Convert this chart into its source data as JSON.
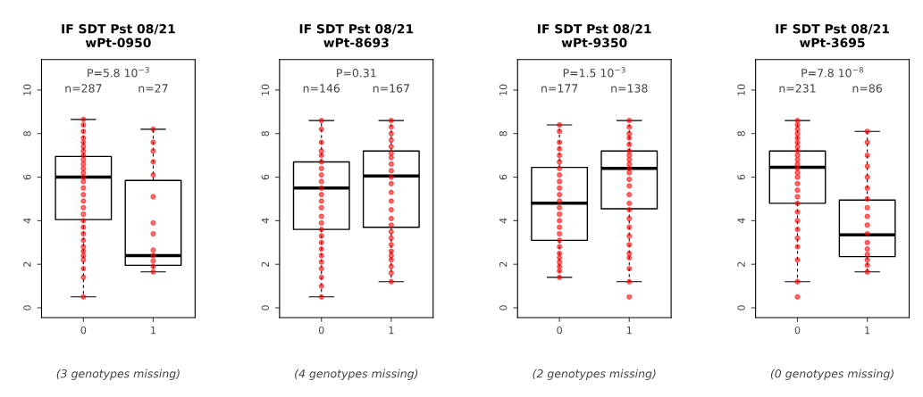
{
  "chart_data": [
    {
      "type": "box",
      "title": "IF SDT Pst 08/21\nwPt-0950",
      "categories": [
        "0",
        "1"
      ],
      "ylim": [
        -0.45,
        11.4
      ],
      "yticks": [
        0,
        2,
        4,
        6,
        8,
        10
      ],
      "grid": false,
      "legend": false,
      "boxes": [
        {
          "low": 0.5,
          "q1": 4.05,
          "median": 6.0,
          "q3": 6.95,
          "high": 8.65
        },
        {
          "low": 1.65,
          "q1": 1.95,
          "median": 2.4,
          "q3": 5.85,
          "high": 8.2
        }
      ],
      "series": [
        {
          "type": "scatter",
          "color": "#ff0000",
          "x": [
            "0",
            "0",
            "0",
            "0",
            "0",
            "0",
            "0",
            "0",
            "0",
            "0",
            "0",
            "0",
            "0",
            "0",
            "0",
            "0",
            "0",
            "0",
            "0",
            "0",
            "0",
            "0",
            "0",
            "0",
            "0",
            "0",
            "0",
            "0",
            "0",
            "0"
          ],
          "values": [
            8.65,
            8.4,
            8.1,
            7.8,
            7.6,
            7.4,
            7.2,
            7.0,
            6.8,
            6.6,
            6.4,
            6.2,
            6.0,
            5.8,
            5.5,
            5.2,
            4.9,
            4.6,
            4.3,
            4.0,
            3.7,
            3.4,
            3.1,
            2.8,
            2.6,
            2.4,
            2.2,
            1.8,
            1.4,
            0.5
          ]
        },
        {
          "type": "scatter",
          "color": "#ff0000",
          "x": [
            "1",
            "1",
            "1",
            "1",
            "1",
            "1",
            "1",
            "1",
            "1",
            "1",
            "1",
            "1",
            "1"
          ],
          "values": [
            8.2,
            7.6,
            7.2,
            6.7,
            6.1,
            5.1,
            3.9,
            3.4,
            2.65,
            2.4,
            2.15,
            1.9,
            1.65
          ]
        }
      ],
      "annotations": [
        "P=5.8 10$^{−3}$",
        "(3 genotypes missing)",
        "n=287",
        "n=27"
      ]
    },
    {
      "type": "box",
      "title": "IF SDT Pst 08/21\nwPt-8693",
      "categories": [
        "0",
        "1"
      ],
      "ylim": [
        -0.45,
        11.4
      ],
      "yticks": [
        0,
        2,
        4,
        6,
        8,
        10
      ],
      "grid": false,
      "legend": false,
      "boxes": [
        {
          "low": 0.5,
          "q1": 3.6,
          "median": 5.5,
          "q3": 6.7,
          "high": 8.6
        },
        {
          "low": 1.2,
          "q1": 3.7,
          "median": 6.05,
          "q3": 7.2,
          "high": 8.6
        }
      ],
      "series": [
        {
          "type": "scatter",
          "color": "#ff0000",
          "x": [
            "0",
            "0",
            "0",
            "0",
            "0",
            "0",
            "0",
            "0",
            "0",
            "0",
            "0",
            "0",
            "0",
            "0",
            "0",
            "0",
            "0",
            "0",
            "0",
            "0",
            "0",
            "0",
            "0",
            "0",
            "0"
          ],
          "values": [
            8.6,
            8.2,
            7.6,
            7.2,
            7.0,
            6.7,
            6.4,
            6.1,
            5.8,
            5.5,
            5.2,
            4.9,
            4.6,
            4.2,
            3.9,
            3.6,
            3.3,
            3.0,
            2.7,
            2.4,
            2.1,
            1.8,
            1.4,
            1.0,
            0.5
          ]
        },
        {
          "type": "scatter",
          "color": "#ff0000",
          "x": [
            "1",
            "1",
            "1",
            "1",
            "1",
            "1",
            "1",
            "1",
            "1",
            "1",
            "1",
            "1",
            "1",
            "1",
            "1",
            "1",
            "1",
            "1",
            "1",
            "1",
            "1",
            "1",
            "1",
            "1",
            "1"
          ],
          "values": [
            8.6,
            8.3,
            8.0,
            7.7,
            7.4,
            7.1,
            6.9,
            6.6,
            6.3,
            6.0,
            5.7,
            5.3,
            4.9,
            4.5,
            4.1,
            3.8,
            3.5,
            3.2,
            2.9,
            2.6,
            2.4,
            2.2,
            1.9,
            1.6,
            1.2
          ]
        }
      ],
      "annotations": [
        "P=0.31",
        "(4 genotypes missing)",
        "n=146",
        "n=167"
      ]
    },
    {
      "type": "box",
      "title": "IF SDT Pst 08/21\nwPt-9350",
      "categories": [
        "0",
        "1"
      ],
      "ylim": [
        -0.45,
        11.4
      ],
      "yticks": [
        0,
        2,
        4,
        6,
        8,
        10
      ],
      "grid": false,
      "legend": false,
      "boxes": [
        {
          "low": 1.4,
          "q1": 3.1,
          "median": 4.8,
          "q3": 6.45,
          "high": 8.4
        },
        {
          "low": 1.2,
          "q1": 4.55,
          "median": 6.4,
          "q3": 7.2,
          "high": 8.6
        }
      ],
      "series": [
        {
          "type": "scatter",
          "color": "#ff0000",
          "x": [
            "0",
            "0",
            "0",
            "0",
            "0",
            "0",
            "0",
            "0",
            "0",
            "0",
            "0",
            "0",
            "0",
            "0",
            "0",
            "0",
            "0",
            "0",
            "0",
            "0",
            "0",
            "0",
            "0",
            "0",
            "0"
          ],
          "values": [
            8.4,
            8.1,
            7.6,
            7.3,
            7.0,
            6.7,
            6.4,
            6.1,
            5.8,
            5.5,
            5.2,
            4.9,
            4.6,
            4.3,
            4.0,
            3.7,
            3.4,
            3.1,
            2.8,
            2.5,
            2.3,
            2.1,
            1.9,
            1.7,
            1.4
          ]
        },
        {
          "type": "scatter",
          "color": "#ff0000",
          "x": [
            "1",
            "1",
            "1",
            "1",
            "1",
            "1",
            "1",
            "1",
            "1",
            "1",
            "1",
            "1",
            "1",
            "1",
            "1",
            "1",
            "1",
            "1",
            "1",
            "1",
            "1",
            "1",
            "1",
            "1",
            "1"
          ],
          "values": [
            8.6,
            8.3,
            8.0,
            7.8,
            7.5,
            7.2,
            7.0,
            6.8,
            6.6,
            6.4,
            6.2,
            5.9,
            5.6,
            5.2,
            4.8,
            4.5,
            4.1,
            3.7,
            3.3,
            2.9,
            2.5,
            2.3,
            1.8,
            1.2,
            0.5
          ]
        }
      ],
      "annotations": [
        "P=1.5 10$^{−3}$",
        "(2 genotypes missing)",
        "n=177",
        "n=138"
      ]
    },
    {
      "type": "box",
      "title": "IF SDT Pst 08/21\nwPt-3695",
      "categories": [
        "0",
        "1"
      ],
      "ylim": [
        -0.45,
        11.4
      ],
      "yticks": [
        0,
        2,
        4,
        6,
        8,
        10
      ],
      "grid": false,
      "legend": false,
      "boxes": [
        {
          "low": 1.2,
          "q1": 4.8,
          "median": 6.45,
          "q3": 7.2,
          "high": 8.6
        },
        {
          "low": 1.65,
          "q1": 2.35,
          "median": 3.35,
          "q3": 4.95,
          "high": 8.1
        }
      ],
      "series": [
        {
          "type": "scatter",
          "color": "#ff0000",
          "x": [
            "0",
            "0",
            "0",
            "0",
            "0",
            "0",
            "0",
            "0",
            "0",
            "0",
            "0",
            "0",
            "0",
            "0",
            "0",
            "0",
            "0",
            "0",
            "0",
            "0",
            "0",
            "0",
            "0",
            "0",
            "0",
            "0"
          ],
          "values": [
            8.6,
            8.4,
            8.2,
            8.0,
            7.8,
            7.6,
            7.4,
            7.2,
            7.0,
            6.8,
            6.6,
            6.4,
            6.2,
            6.0,
            5.7,
            5.4,
            5.1,
            4.8,
            4.4,
            4.0,
            3.6,
            3.2,
            2.8,
            2.2,
            1.2,
            0.5
          ]
        },
        {
          "type": "scatter",
          "color": "#ff0000",
          "x": [
            "1",
            "1",
            "1",
            "1",
            "1",
            "1",
            "1",
            "1",
            "1",
            "1",
            "1",
            "1",
            "1",
            "1",
            "1",
            "1",
            "1"
          ],
          "values": [
            8.1,
            7.6,
            7.0,
            6.5,
            6.0,
            5.5,
            5.0,
            4.6,
            4.2,
            3.8,
            3.4,
            3.0,
            2.7,
            2.45,
            2.2,
            1.95,
            1.65
          ]
        }
      ],
      "annotations": [
        "P=7.8 10$^{−8}$",
        "(0 genotypes missing)",
        "n=231",
        "n=86"
      ]
    }
  ]
}
